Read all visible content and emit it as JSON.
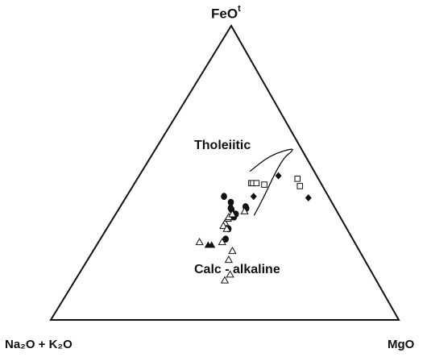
{
  "chart_data": {
    "type": "ternary-scatter",
    "apices": {
      "top": {
        "label": "FeO",
        "superscript": "t"
      },
      "left": {
        "label": "Na₂O + K₂O"
      },
      "right": {
        "label": "MgO"
      }
    },
    "fields": {
      "upper": "Tholeiitic",
      "lower": "Calc - alkaline"
    },
    "grid": false,
    "boundary_curve": [
      {
        "A": 18.5,
        "F": 50.5
      },
      {
        "A": 10.0,
        "F": 56.0
      },
      {
        "A": 2.0,
        "F": 58.5
      },
      {
        "A": 3.5,
        "F": 57.0
      },
      {
        "A": 6.0,
        "F": 55.5
      },
      {
        "A": 11.0,
        "F": 50.5
      },
      {
        "A": 18.0,
        "F": 42.5
      },
      {
        "A": 24.5,
        "F": 35.5
      }
    ],
    "series": [
      {
        "marker": "filled-circle",
        "points": [
          {
            "A": 30.0,
            "F": 37.5
          },
          {
            "A": 30.5,
            "F": 35.0
          },
          {
            "A": 29.5,
            "F": 36.0
          },
          {
            "A": 30.0,
            "F": 38.0
          },
          {
            "A": 29.0,
            "F": 40.0
          },
          {
            "A": 25.5,
            "F": 38.0
          },
          {
            "A": 25.5,
            "F": 38.5
          },
          {
            "A": 30.0,
            "F": 42.0
          },
          {
            "A": 36.5,
            "F": 27.5
          },
          {
            "A": 34.0,
            "F": 31.0
          }
        ]
      },
      {
        "marker": "open-triangle",
        "points": [
          {
            "A": 34.0,
            "F": 33.0
          },
          {
            "A": 35.0,
            "F": 32.0
          },
          {
            "A": 34.5,
            "F": 31.0
          },
          {
            "A": 32.5,
            "F": 34.5
          },
          {
            "A": 32.0,
            "F": 35.0
          },
          {
            "A": 30.5,
            "F": 36.0
          },
          {
            "A": 26.5,
            "F": 37.0
          },
          {
            "A": 38.0,
            "F": 26.5
          },
          {
            "A": 36.5,
            "F": 23.5
          },
          {
            "A": 39.0,
            "F": 20.5
          },
          {
            "A": 41.0,
            "F": 15.5
          },
          {
            "A": 43.5,
            "F": 13.5
          },
          {
            "A": 44.5,
            "F": 26.5
          }
        ]
      },
      {
        "marker": "filled-triangle",
        "points": [
          {
            "A": 41.5,
            "F": 25.5
          },
          {
            "A": 42.5,
            "F": 25.5
          }
        ]
      },
      {
        "marker": "open-square",
        "points": [
          {
            "A": 20.0,
            "F": 46.5
          },
          {
            "A": 19.5,
            "F": 46.5
          },
          {
            "A": 18.5,
            "F": 46.5
          },
          {
            "A": 16.5,
            "F": 46.0
          },
          {
            "A": 6.5,
            "F": 45.5
          },
          {
            "A": 6.0,
            "F": 48.0
          }
        ]
      },
      {
        "marker": "filled-diamond",
        "points": [
          {
            "A": 11.0,
            "F": 49.0
          },
          {
            "A": 21.5,
            "F": 42.0
          },
          {
            "A": 6.0,
            "F": 41.5
          }
        ]
      }
    ]
  }
}
